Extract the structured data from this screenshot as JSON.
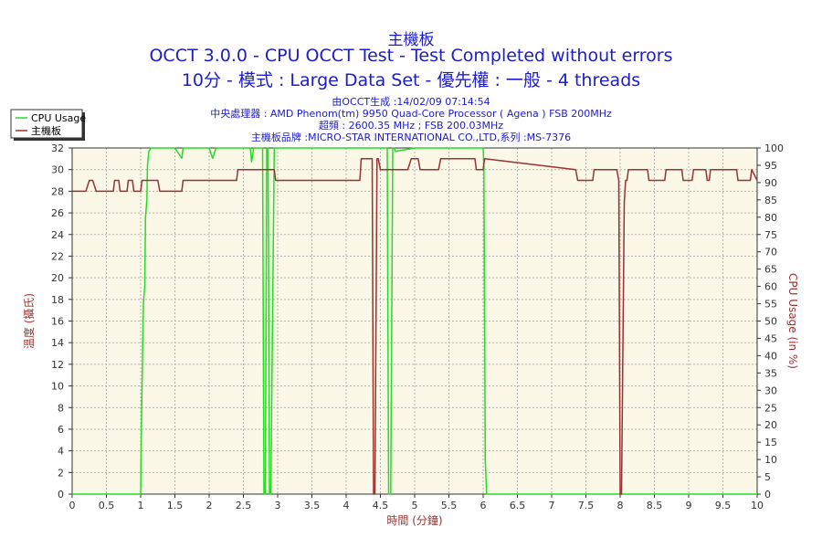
{
  "chart_data": {
    "type": "line",
    "title": "主機板",
    "subtitle_lines": [
      "OCCT 3.0.0 - CPU OCCT Test - Test Completed without errors",
      "10分 - 模式 : Large Data Set - 優先權 : 一般 - 4 threads"
    ],
    "info_lines": [
      "由OCCT生成 :14/02/09 07:14:54",
      "中央處理器 : AMD Phenom(tm) 9950 Quad-Core Processor ( Agena ) FSB 200MHz",
      "超頻 : 2600.35 MHz ; FSB 200.03MHz",
      "主機板品牌 :MICRO-STAR INTERNATIONAL CO.,LTD,系列 :MS-7376"
    ],
    "xlabel": "時間 (分鐘)",
    "ylabel_left": "溫度 (攝氏)",
    "ylabel_right": "CPU Usage (in %)",
    "xlim": [
      0,
      10
    ],
    "ylim_left": [
      0,
      32
    ],
    "ylim_right": [
      0,
      100
    ],
    "x_ticks": [
      "0",
      "0.5",
      "1",
      "1.5",
      "2",
      "2.5",
      "3",
      "3.5",
      "4",
      "4.5",
      "5",
      "5.5",
      "6",
      "6.5",
      "7",
      "7.5",
      "8",
      "8.5",
      "9",
      "9.5",
      "10"
    ],
    "y_ticks_left": [
      "0",
      "2",
      "4",
      "6",
      "8",
      "10",
      "12",
      "14",
      "16",
      "18",
      "20",
      "22",
      "24",
      "26",
      "28",
      "30",
      "32"
    ],
    "y_ticks_right": [
      "0",
      "5",
      "10",
      "15",
      "20",
      "25",
      "30",
      "35",
      "40",
      "45",
      "50",
      "55",
      "60",
      "65",
      "70",
      "75",
      "80",
      "85",
      "90",
      "95",
      "100"
    ],
    "grid": true,
    "legend_position": "top-left",
    "colors": {
      "cpu_usage": "#22dd22",
      "motherboard": "#993333",
      "plot_background": "#fbf8e8",
      "title_text": "#1c1ccc",
      "left_axis_label": "#993333"
    },
    "series": [
      {
        "name": "CPU Usage",
        "axis": "right",
        "x": [
          0,
          1.0,
          1.01,
          1.04,
          1.06,
          1.07,
          1.09,
          1.1,
          1.12,
          1.15,
          1.5,
          1.6,
          1.62,
          1.65,
          2.0,
          2.05,
          2.1,
          2.6,
          2.62,
          2.65,
          2.78,
          2.8,
          2.82,
          2.84,
          2.86,
          2.88,
          2.9,
          2.95,
          3.0,
          4.6,
          4.62,
          4.65,
          4.68,
          4.7,
          4.72,
          5.0,
          6.0,
          6.01,
          6.03,
          6.05,
          10
        ],
        "y": [
          0,
          0,
          20,
          55,
          60,
          80,
          85,
          95,
          99,
          100,
          100,
          97,
          100,
          100,
          100,
          97,
          100,
          100,
          96,
          100,
          100,
          0,
          0,
          100,
          100,
          0,
          0,
          100,
          100,
          100,
          0,
          0,
          100,
          100,
          99,
          100,
          100,
          95,
          10,
          0,
          0
        ]
      },
      {
        "name": "主機板",
        "axis": "left",
        "x": [
          0,
          0.2,
          0.25,
          0.3,
          0.35,
          0.6,
          0.62,
          0.68,
          0.7,
          0.8,
          0.82,
          0.88,
          0.9,
          1.0,
          1.02,
          1.05,
          1.1,
          1.25,
          1.28,
          1.6,
          1.62,
          2.4,
          2.42,
          2.95,
          2.97,
          4.2,
          4.22,
          4.38,
          4.4,
          4.42,
          4.45,
          4.47,
          4.5,
          4.9,
          4.95,
          5.05,
          5.08,
          5.35,
          5.38,
          5.88,
          5.9,
          6.0,
          6.02,
          7.35,
          7.38,
          7.6,
          7.62,
          7.95,
          7.98,
          8.0,
          8.02,
          8.06,
          8.08,
          8.1,
          8.12,
          8.4,
          8.42,
          8.65,
          8.67,
          8.9,
          8.92,
          9.05,
          9.07,
          9.25,
          9.27,
          9.3,
          9.32,
          9.7,
          9.72,
          9.9,
          9.92,
          10
        ],
        "y": [
          28,
          28,
          29,
          29,
          28,
          28,
          29,
          29,
          28,
          28,
          29,
          29,
          28,
          28,
          29,
          29,
          29,
          29,
          28,
          28,
          29,
          29,
          30,
          30,
          29,
          29,
          31,
          31,
          0,
          0,
          31,
          31,
          30,
          30,
          31,
          31,
          30,
          30,
          31,
          31,
          30,
          30,
          31,
          30,
          29,
          29,
          30,
          30,
          29,
          0,
          0,
          27,
          29,
          29,
          30,
          30,
          29,
          29,
          30,
          30,
          29,
          29,
          30,
          30,
          29,
          29,
          30,
          30,
          29,
          29,
          30,
          29
        ]
      }
    ]
  }
}
